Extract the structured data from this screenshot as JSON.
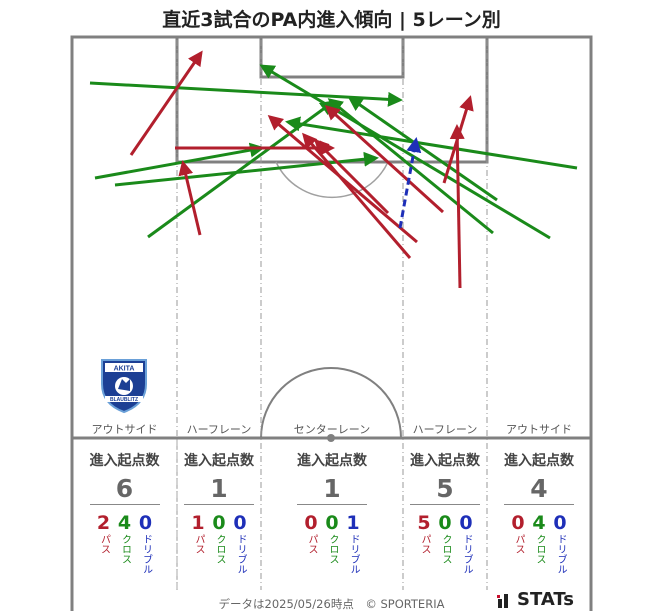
{
  "title": "直近3試合のPA内進入傾向 | 5レーン別",
  "lanes": [
    {
      "name": "アウトサイド",
      "head": "進入起点数",
      "total": "6",
      "pass": "2",
      "cross": "4",
      "dribble": "0"
    },
    {
      "name": "ハーフレーン",
      "head": "進入起点数",
      "total": "1",
      "pass": "1",
      "cross": "0",
      "dribble": "0"
    },
    {
      "name": "センターレーン",
      "head": "進入起点数",
      "total": "1",
      "pass": "0",
      "cross": "0",
      "dribble": "1"
    },
    {
      "name": "ハーフレーン",
      "head": "進入起点数",
      "total": "5",
      "pass": "5",
      "cross": "0",
      "dribble": "0"
    },
    {
      "name": "アウトサイド",
      "head": "進入起点数",
      "total": "4",
      "pass": "0",
      "cross": "4",
      "dribble": "0"
    }
  ],
  "labels": {
    "pass": "パス",
    "cross": "クロス",
    "dribble": "ドリブル"
  },
  "colors": {
    "pass": "#b21f2d",
    "cross": "#1a8a1a",
    "dribble": "#1e2fb8",
    "line": "#808080"
  },
  "logo": {
    "top_text": "AKITA",
    "bottom_text": "BLAUBLITZ"
  },
  "footer": "データは2025/05/26時点　© SPORTERIA",
  "brand": "STATs"
}
